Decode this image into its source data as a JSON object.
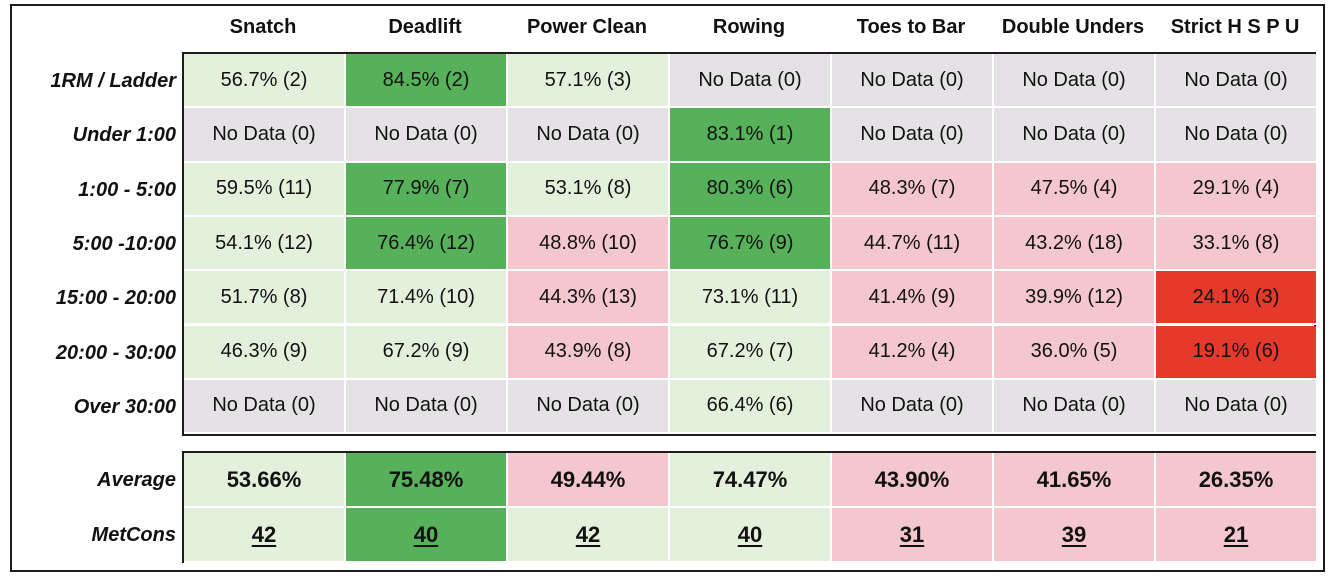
{
  "colors": {
    "light_green": "#e3f1dc",
    "dark_green": "#56b15a",
    "pink": "#f4c6ce",
    "gray": "#e4e2e4",
    "red": "#e5392c"
  },
  "chart_data": {
    "type": "table",
    "columns": [
      "Snatch",
      "Deadlift",
      "Power Clean",
      "Rowing",
      "Toes to Bar",
      "Double Unders",
      "Strict H S P U"
    ],
    "rows": [
      {
        "label": "1RM / Ladder",
        "cells": [
          {
            "text": "56.7% (2)",
            "color": "light_green"
          },
          {
            "text": "84.5% (2)",
            "color": "dark_green"
          },
          {
            "text": "57.1% (3)",
            "color": "light_green"
          },
          {
            "text": "No Data (0)",
            "color": "gray"
          },
          {
            "text": "No Data (0)",
            "color": "gray"
          },
          {
            "text": "No Data (0)",
            "color": "gray"
          },
          {
            "text": "No Data (0)",
            "color": "gray"
          }
        ]
      },
      {
        "label": "Under 1:00",
        "cells": [
          {
            "text": "No Data (0)",
            "color": "gray"
          },
          {
            "text": "No Data (0)",
            "color": "gray"
          },
          {
            "text": "No Data (0)",
            "color": "gray"
          },
          {
            "text": "83.1% (1)",
            "color": "dark_green"
          },
          {
            "text": "No Data (0)",
            "color": "gray"
          },
          {
            "text": "No Data (0)",
            "color": "gray"
          },
          {
            "text": "No Data (0)",
            "color": "gray"
          }
        ]
      },
      {
        "label": "1:00 - 5:00",
        "cells": [
          {
            "text": "59.5% (11)",
            "color": "light_green"
          },
          {
            "text": "77.9% (7)",
            "color": "dark_green"
          },
          {
            "text": "53.1% (8)",
            "color": "light_green"
          },
          {
            "text": "80.3% (6)",
            "color": "dark_green"
          },
          {
            "text": "48.3% (7)",
            "color": "pink"
          },
          {
            "text": "47.5% (4)",
            "color": "pink"
          },
          {
            "text": "29.1% (4)",
            "color": "pink"
          }
        ]
      },
      {
        "label": "5:00 -10:00",
        "cells": [
          {
            "text": "54.1% (12)",
            "color": "light_green"
          },
          {
            "text": "76.4% (12)",
            "color": "dark_green"
          },
          {
            "text": "48.8% (10)",
            "color": "pink"
          },
          {
            "text": "76.7% (9)",
            "color": "dark_green"
          },
          {
            "text": "44.7% (11)",
            "color": "pink"
          },
          {
            "text": "43.2% (18)",
            "color": "pink"
          },
          {
            "text": "33.1% (8)",
            "color": "pink"
          }
        ]
      },
      {
        "label": "15:00 - 20:00",
        "cells": [
          {
            "text": "51.7% (8)",
            "color": "light_green"
          },
          {
            "text": "71.4% (10)",
            "color": "light_green"
          },
          {
            "text": "44.3% (13)",
            "color": "pink"
          },
          {
            "text": "73.1% (11)",
            "color": "light_green"
          },
          {
            "text": "41.4% (9)",
            "color": "pink"
          },
          {
            "text": "39.9% (12)",
            "color": "pink"
          },
          {
            "text": "24.1% (3)",
            "color": "red"
          }
        ]
      },
      {
        "label": "20:00 - 30:00",
        "cells": [
          {
            "text": "46.3% (9)",
            "color": "light_green"
          },
          {
            "text": "67.2% (9)",
            "color": "light_green"
          },
          {
            "text": "43.9% (8)",
            "color": "pink"
          },
          {
            "text": "67.2% (7)",
            "color": "light_green"
          },
          {
            "text": "41.2% (4)",
            "color": "pink"
          },
          {
            "text": "36.0% (5)",
            "color": "pink"
          },
          {
            "text": "19.1% (6)",
            "color": "red"
          }
        ]
      },
      {
        "label": "Over 30:00",
        "cells": [
          {
            "text": "No Data (0)",
            "color": "gray"
          },
          {
            "text": "No Data (0)",
            "color": "gray"
          },
          {
            "text": "No Data (0)",
            "color": "gray"
          },
          {
            "text": "66.4% (6)",
            "color": "light_green"
          },
          {
            "text": "No Data (0)",
            "color": "gray"
          },
          {
            "text": "No Data (0)",
            "color": "gray"
          },
          {
            "text": "No Data (0)",
            "color": "gray"
          }
        ]
      }
    ],
    "summary": {
      "average": {
        "label": "Average",
        "values": [
          "53.66%",
          "75.48%",
          "49.44%",
          "74.47%",
          "43.90%",
          "41.65%",
          "26.35%"
        ],
        "colors": [
          "light_green",
          "dark_green",
          "pink",
          "light_green",
          "pink",
          "pink",
          "pink"
        ]
      },
      "metcons": {
        "label": "MetCons",
        "values": [
          42,
          40,
          42,
          40,
          31,
          39,
          21
        ],
        "colors": [
          "light_green",
          "dark_green",
          "light_green",
          "light_green",
          "pink",
          "pink",
          "pink"
        ]
      }
    }
  }
}
